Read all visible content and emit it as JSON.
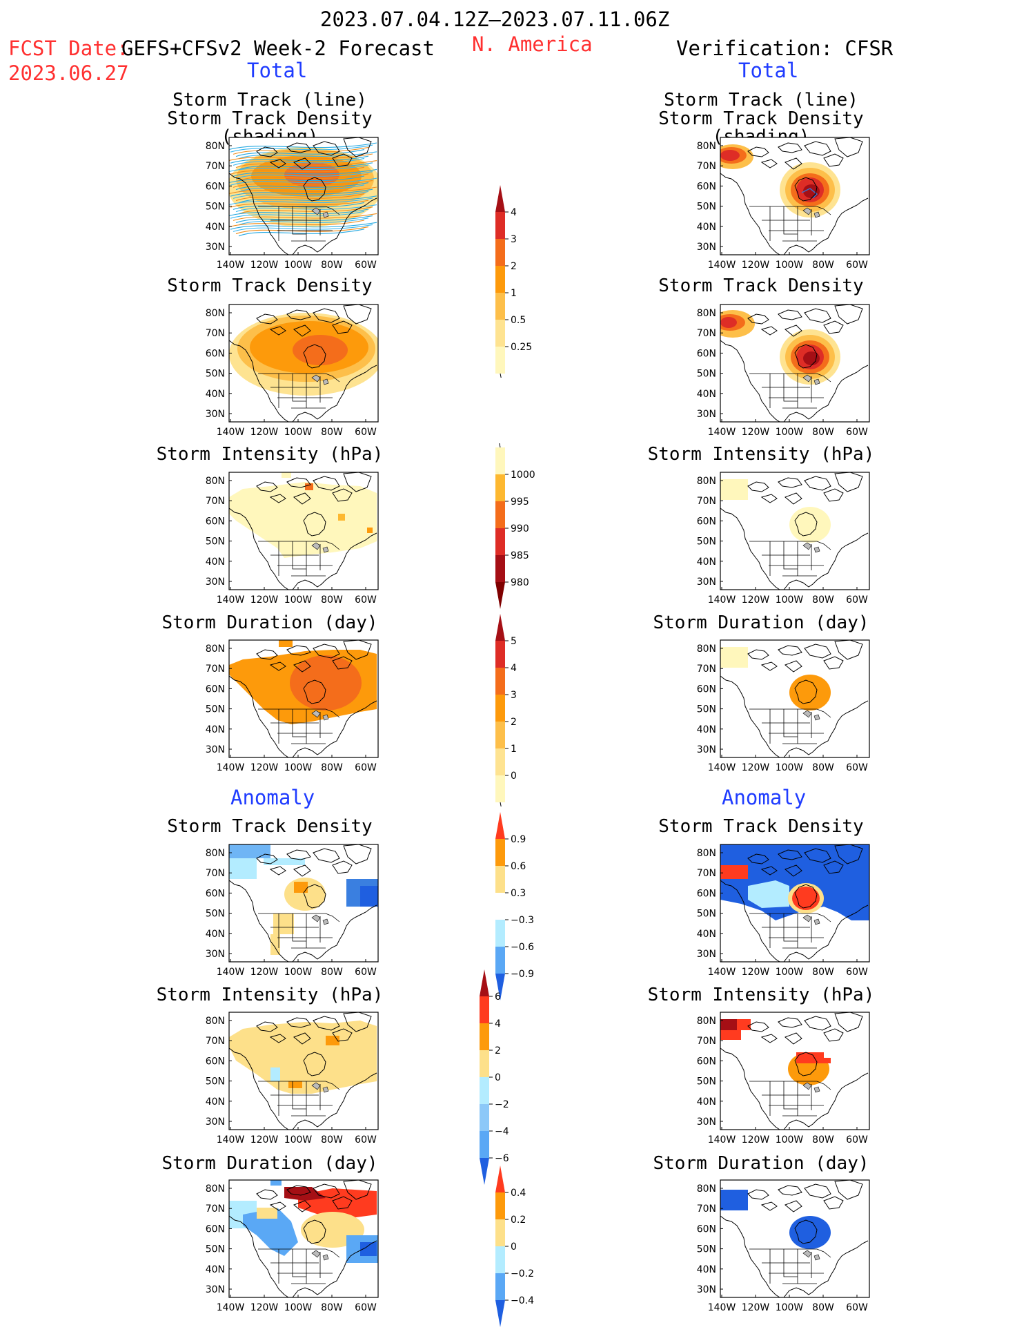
{
  "header": {
    "date_range": "2023.07.04.12Z—2023.07.11.06Z",
    "fcst_label": "FCST Date:",
    "fcst_model": "GEFS+CFSv2 Week-2 Forecast",
    "fcst_date": "2023.06.27",
    "region": "N. America",
    "verification": "Verification: CFSR",
    "total_left": "Total",
    "total_right": "Total",
    "anomaly_left": "Anomaly",
    "anomaly_right": "Anomaly"
  },
  "axes": {
    "lat_labels": [
      "80N",
      "70N",
      "60N",
      "50N",
      "40N",
      "30N"
    ],
    "lon_labels": [
      "140W",
      "120W",
      "100W",
      "80W",
      "60W"
    ]
  },
  "panels": {
    "l_track": {
      "title1": "Storm Track (line)",
      "title2": "Storm Track Density (shading)"
    },
    "r_track": {
      "title1": "Storm Track (line)",
      "title2": "Storm Track Density (shading)"
    },
    "l_density": {
      "title": "Storm Track Density"
    },
    "r_density": {
      "title": "Storm Track Density"
    },
    "l_intens": {
      "title": "Storm Intensity (hPa)"
    },
    "r_intens": {
      "title": "Storm Intensity (hPa)"
    },
    "l_dur": {
      "title": "Storm Duration (day)"
    },
    "r_dur": {
      "title": "Storm Duration (day)"
    },
    "l_adens": {
      "title": "Storm Track Density"
    },
    "r_adens": {
      "title": "Storm Track Density"
    },
    "l_aint": {
      "title": "Storm Intensity (hPa)"
    },
    "r_aint": {
      "title": "Storm Intensity (hPa)"
    },
    "l_adur": {
      "title": "Storm Duration (day)"
    },
    "r_adur": {
      "title": "Storm Duration (day)"
    }
  },
  "colorbars": {
    "density": {
      "labels": [
        "4",
        "3",
        "2",
        "1",
        "0.5",
        "0.25"
      ],
      "colors": [
        "#a50f15",
        "#de2d26",
        "#f46d1b",
        "#fd9a0b",
        "#fdbf4a",
        "#fee391",
        "#fff7bc"
      ]
    },
    "intensity": {
      "labels": [
        "1000",
        "995",
        "990",
        "985",
        "980"
      ],
      "colors": [
        "#fff7bc",
        "#fdb830",
        "#f46d1b",
        "#de2d26",
        "#a50f15",
        "#7f0000"
      ]
    },
    "duration": {
      "labels": [
        "5",
        "4",
        "3",
        "2",
        "1",
        "0"
      ],
      "colors": [
        "#a50f15",
        "#de2d26",
        "#f46d1b",
        "#fd9a0b",
        "#fdbf4a",
        "#fee391",
        "#fff7bc"
      ]
    },
    "anom_density": {
      "labels": [
        "0.9",
        "0.6",
        "0.3",
        "−0.3",
        "−0.6",
        "−0.9"
      ],
      "colors": [
        "#ff3b1f",
        "#fd9a0b",
        "#fde08a",
        "#ffffff",
        "#b3ecff",
        "#5aa8f5",
        "#1f5fe0"
      ]
    },
    "anom_intensity": {
      "labels": [
        "6",
        "4",
        "2",
        "0",
        "−2",
        "−4",
        "−6"
      ],
      "colors": [
        "#a50f15",
        "#ff3b1f",
        "#fd9a0b",
        "#fde08a",
        "#b3ecff",
        "#8cc8f8",
        "#5aa8f5",
        "#1f5fe0"
      ]
    },
    "anom_duration": {
      "labels": [
        "0.4",
        "0.2",
        "0",
        "−0.2",
        "−0.4"
      ],
      "colors": [
        "#ff3b1f",
        "#fd9a0b",
        "#fde08a",
        "#b3ecff",
        "#5aa8f5",
        "#1f5fe0"
      ]
    }
  },
  "colors": {
    "title_red": "#ff3030",
    "title_blue": "#1f3cff"
  }
}
